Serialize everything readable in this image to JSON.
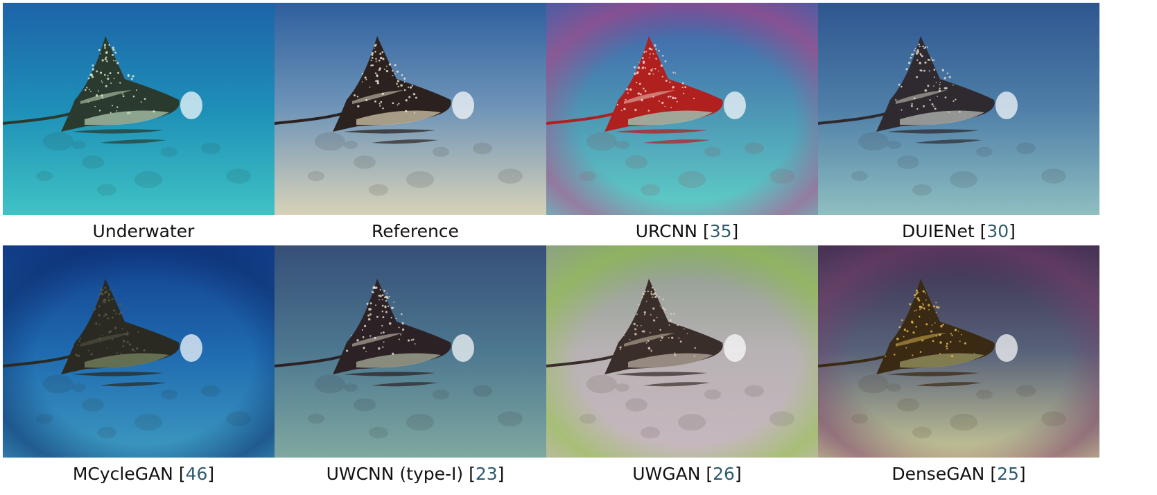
{
  "panels": [
    {
      "id": "underwater",
      "label": "Underwater",
      "ref": "",
      "colors": {
        "top": "#1d63a8",
        "mid": "#1e8fb8",
        "bottom": "#3fc3c4",
        "ray": "#2a3a2e",
        "belly": "#9fb7a0",
        "spot": "#d9e8c8",
        "halo": "none"
      }
    },
    {
      "id": "reference",
      "label": "Reference",
      "ref": "",
      "colors": {
        "top": "#2e5f9e",
        "mid": "#6f95b8",
        "bottom": "#d7d2b8",
        "ray": "#2b2220",
        "belly": "#bdb39a",
        "spot": "#efe6d0",
        "halo": "none"
      }
    },
    {
      "id": "urcnn",
      "label": "URCNN",
      "ref": "35",
      "colors": {
        "top": "#3e5ea8",
        "mid": "#4c94b4",
        "bottom": "#5fd0c8",
        "ray": "#b0201e",
        "belly": "#9fbfae",
        "spot": "#f0d0c8",
        "halo": "#c04080"
      }
    },
    {
      "id": "duienet",
      "label": "DUIENet",
      "ref": "30",
      "colors": {
        "top": "#2e5690",
        "mid": "#4f7fa8",
        "bottom": "#8fbfc0",
        "ray": "#2e2a30",
        "belly": "#a5a9a4",
        "spot": "#dedccc",
        "halo": "none"
      }
    },
    {
      "id": "mcyclegan",
      "label": "MCycleGAN",
      "ref": "46",
      "colors": {
        "top": "#123f8e",
        "mid": "#1f6ab0",
        "bottom": "#3d9ac0",
        "ray": "#2a2a22",
        "belly": "#6f7a58",
        "spot": "#5a5a48",
        "halo": "#0c2c6a"
      }
    },
    {
      "id": "uwcnn",
      "label": "UWCNN (type-I)",
      "ref": "23",
      "colors": {
        "top": "#364f78",
        "mid": "#4d7890",
        "bottom": "#7fa8a0",
        "ray": "#2c2226",
        "belly": "#9a9e8c",
        "spot": "#e0dcc8",
        "halo": "none"
      }
    },
    {
      "id": "uwgan",
      "label": "UWGAN",
      "ref": "26",
      "colors": {
        "top": "#8a9c8a",
        "mid": "#b8b2b4",
        "bottom": "#c8b8c0",
        "ray": "#3a2e2a",
        "belly": "#a89a90",
        "spot": "#d8c8b0",
        "halo": "#8ec43c"
      }
    },
    {
      "id": "densegan",
      "label": "DenseGAN",
      "ref": "25",
      "colors": {
        "top": "#3a2e4e",
        "mid": "#58627a",
        "bottom": "#c9c896",
        "ray": "#3a2a14",
        "belly": "#8e8a5a",
        "spot": "#e0b850",
        "halo": "#7a3e6a"
      }
    }
  ]
}
